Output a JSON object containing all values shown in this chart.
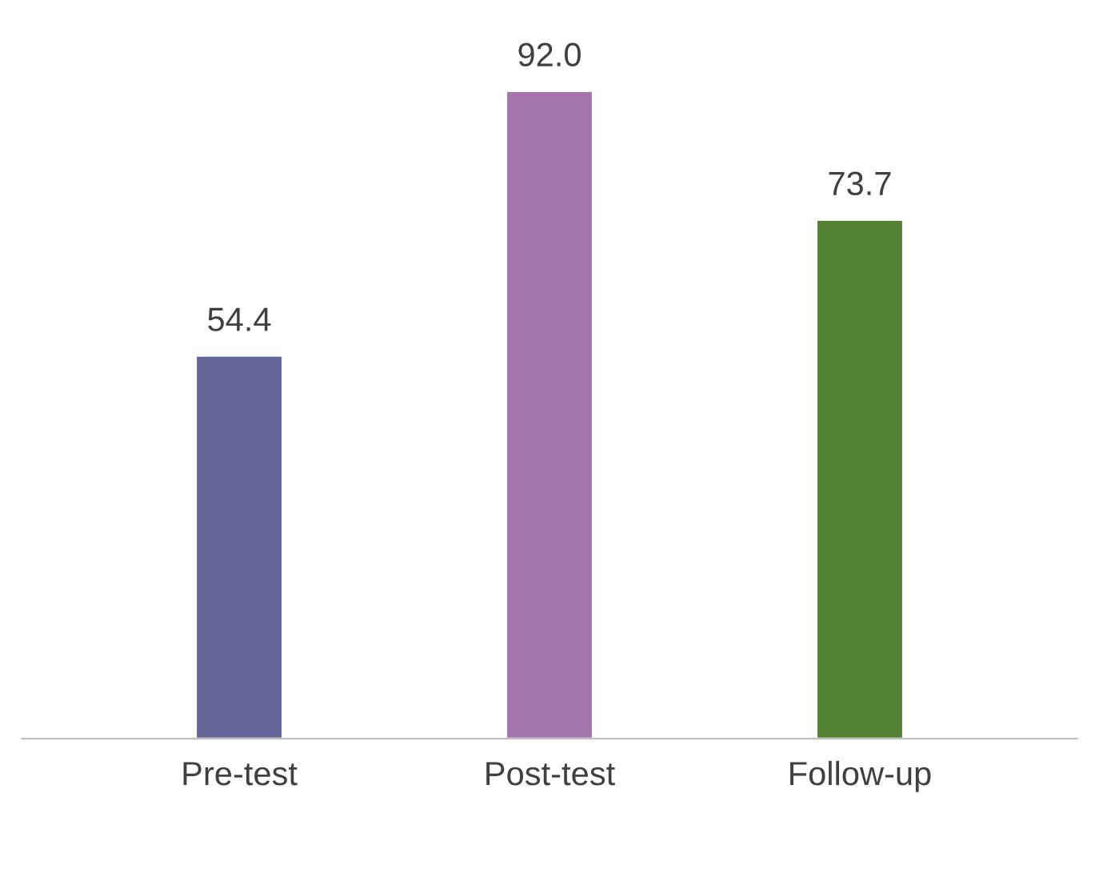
{
  "chart_data": {
    "type": "bar",
    "categories": [
      "Pre-test",
      "Post-test",
      "Follow-up"
    ],
    "values": [
      54.4,
      92.0,
      73.7
    ],
    "colors": [
      "#636596",
      "#a374ab",
      "#548235"
    ],
    "value_labels": [
      "54.4",
      "92.0",
      "73.7"
    ],
    "tick_labels": "x",
    "grid": false,
    "legend": false
  }
}
